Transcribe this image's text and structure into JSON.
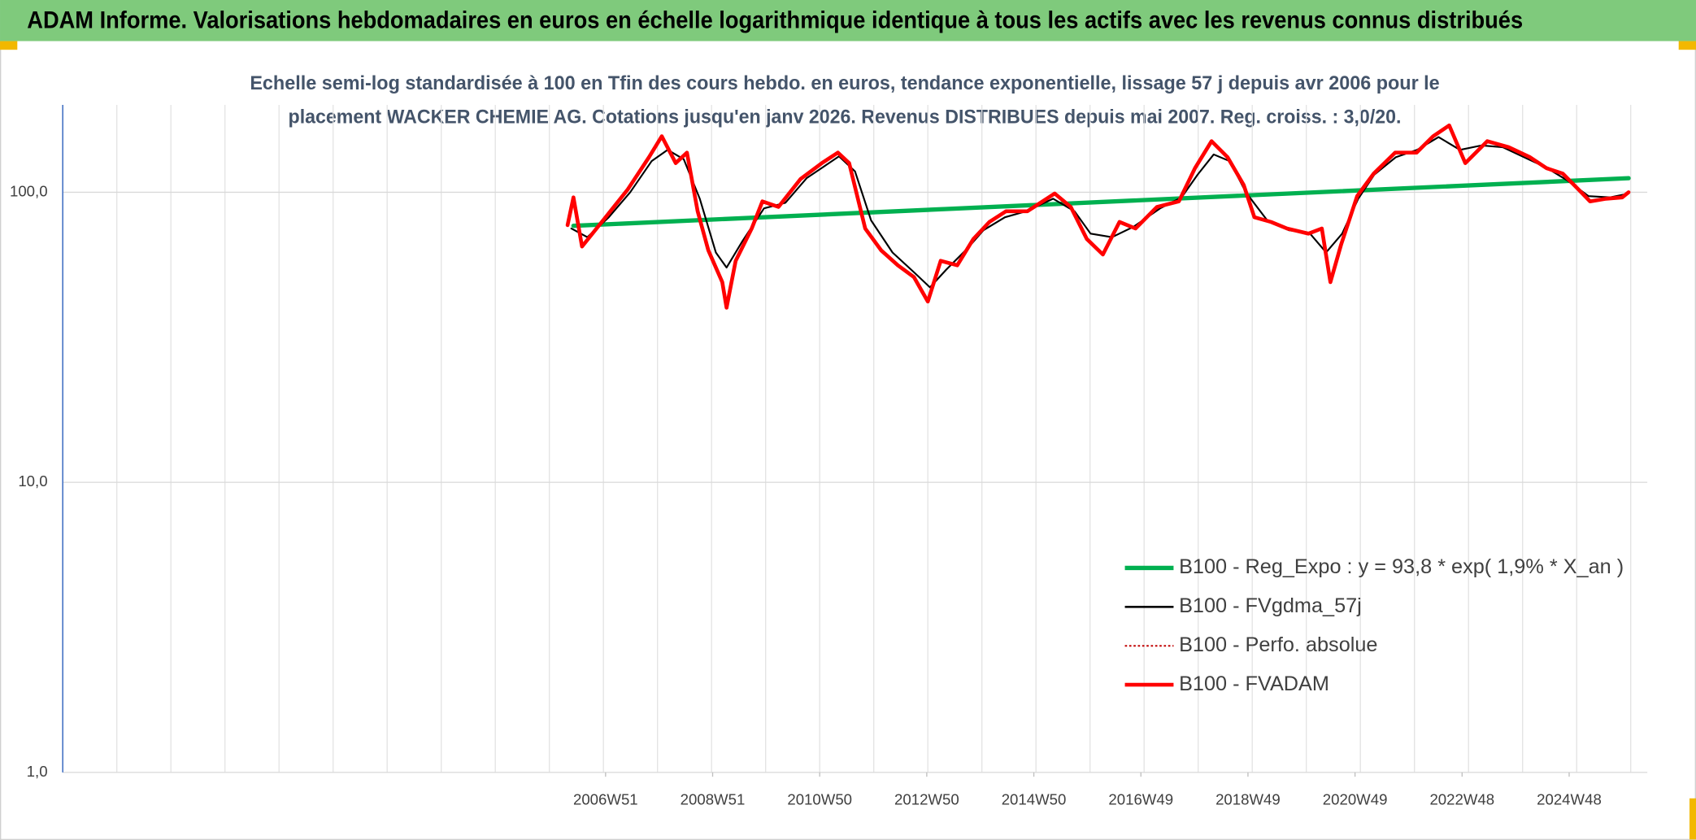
{
  "chart_data": {
    "type": "line",
    "title": "ADAM Informe. Valorisations hebdomadaires en euros en échelle logarithmique identique à tous les actifs avec les revenus connus distribués",
    "subtitle": [
      "Echelle semi-log standardisée à 100 en Tfin des cours hebdo. en euros, tendance exponentielle, lissage 57 j depuis avr 2006 pour le",
      "placement WACKER CHEMIE AG. Cotations jusqu'en janv 2026. Revenus DISTRIBUES depuis mai 2007. Reg. croiss. : 3,0/20."
    ],
    "log_scale": true,
    "grid": true,
    "legend": "right",
    "ylim": [
      1,
      200
    ],
    "yticks": [
      {
        "value": 1,
        "label": "1,0"
      },
      {
        "value": 10,
        "label": "10,0"
      },
      {
        "value": 100,
        "label": "100,0"
      }
    ],
    "xlim": [
      1996.8,
      2026.4
    ],
    "xticks": [
      {
        "value": 2006.94,
        "label": "2006W51"
      },
      {
        "value": 2008.94,
        "label": "2008W51"
      },
      {
        "value": 2010.94,
        "label": "2010W50"
      },
      {
        "value": 2012.94,
        "label": "2012W50"
      },
      {
        "value": 2014.94,
        "label": "2014W50"
      },
      {
        "value": 2016.94,
        "label": "2016W49"
      },
      {
        "value": 2018.94,
        "label": "2018W49"
      },
      {
        "value": 2020.94,
        "label": "2020W49"
      },
      {
        "value": 2022.94,
        "label": "2022W48"
      },
      {
        "value": 2024.94,
        "label": "2024W48"
      }
    ],
    "xgrid": [
      1997.81,
      1998.82,
      1999.83,
      2000.84,
      2001.85,
      2002.86,
      2003.87,
      2004.88,
      2005.89,
      2006.9,
      2007.91,
      2008.92,
      2009.93,
      2010.94,
      2011.95,
      2012.96,
      2013.97,
      2014.98,
      2015.99,
      2017.0,
      2018.01,
      2019.02,
      2020.03,
      2021.04,
      2022.05,
      2023.06,
      2024.07,
      2025.08,
      2026.09
    ],
    "series": [
      {
        "name": "B100 - Reg_Expo : y = 93,8 * exp( 1,9% *  X_an )",
        "color": "#00b050",
        "style": "solid",
        "width": 4,
        "x": [
          2006.34,
          2026.05
        ],
        "values": [
          76.6,
          111.8
        ]
      },
      {
        "name": "B100 - FVgdma_57j",
        "color": "#000000",
        "style": "solid",
        "width": 1.6,
        "x": [
          2006.3,
          2006.6,
          2007.0,
          2007.4,
          2007.8,
          2008.1,
          2008.4,
          2008.7,
          2009.0,
          2009.2,
          2009.5,
          2009.9,
          2010.3,
          2010.7,
          2011.0,
          2011.3,
          2011.6,
          2011.9,
          2012.3,
          2012.7,
          2013.0,
          2013.3,
          2013.7,
          2014.0,
          2014.4,
          2014.8,
          2015.3,
          2015.7,
          2016.0,
          2016.4,
          2016.8,
          2017.3,
          2017.7,
          2018.0,
          2018.3,
          2018.6,
          2018.9,
          2019.3,
          2019.7,
          2020.1,
          2020.4,
          2020.7,
          2021.0,
          2021.3,
          2021.7,
          2022.1,
          2022.5,
          2022.9,
          2023.3,
          2023.7,
          2024.1,
          2024.5,
          2024.9,
          2025.3,
          2025.7,
          2026.05
        ],
        "values": [
          75,
          70,
          82,
          100,
          128,
          140,
          130,
          95,
          62,
          55,
          68,
          88,
          92,
          112,
          122,
          133,
          118,
          80,
          62,
          53,
          47,
          54,
          64,
          74,
          82,
          86,
          95,
          86,
          72,
          70,
          76,
          88,
          96,
          115,
          135,
          128,
          100,
          80,
          74,
          72,
          62,
          72,
          95,
          115,
          132,
          140,
          155,
          140,
          145,
          143,
          132,
          122,
          110,
          97,
          96,
          99
        ]
      },
      {
        "name": "B100 - Perfo. absolue",
        "color": "#c00000",
        "style": "dotted",
        "width": 1.5,
        "x": [
          2006.23,
          2006.34,
          2006.5,
          2006.94,
          2007.35,
          2007.75,
          2007.99,
          2008.25,
          2008.46,
          2008.66,
          2008.86,
          2009.12,
          2009.2,
          2009.37,
          2009.67,
          2009.87,
          2010.17,
          2010.58,
          2010.98,
          2011.28,
          2011.49,
          2011.79,
          2012.09,
          2012.4,
          2012.7,
          2012.96,
          2013.2,
          2013.51,
          2013.81,
          2014.11,
          2014.42,
          2014.82,
          2015.33,
          2015.63,
          2015.93,
          2016.23,
          2016.54,
          2016.84,
          2017.24,
          2017.65,
          2017.95,
          2018.26,
          2018.56,
          2018.86,
          2019.06,
          2019.37,
          2019.67,
          2020.07,
          2020.32,
          2020.48,
          2020.68,
          2020.98,
          2021.29,
          2021.69,
          2022.09,
          2022.4,
          2022.7,
          2023.0,
          2023.41,
          2023.81,
          2024.21,
          2024.52,
          2024.82,
          2025.12,
          2025.33,
          2025.63,
          2025.93,
          2026.05
        ],
        "values": [
          77,
          96,
          65,
          82,
          102,
          132,
          156,
          126,
          137,
          86,
          63,
          49,
          40,
          58,
          75,
          93,
          89,
          111,
          126,
          137,
          126,
          75,
          63,
          56,
          51,
          42,
          58,
          56,
          69,
          79,
          86,
          86,
          99,
          89,
          69,
          61,
          79,
          75,
          89,
          93,
          121,
          150,
          132,
          106,
          82,
          79,
          75,
          72,
          75,
          49,
          66,
          97,
          116,
          137,
          137,
          156,
          170,
          126,
          150,
          143,
          132,
          121,
          116,
          102,
          93,
          95,
          96,
          100
        ]
      },
      {
        "name": "B100 - FVADAM",
        "color": "#ff0000",
        "style": "solid",
        "width": 3.5,
        "x": [
          2006.23,
          2006.34,
          2006.5,
          2006.94,
          2007.35,
          2007.75,
          2007.99,
          2008.25,
          2008.46,
          2008.66,
          2008.86,
          2009.12,
          2009.2,
          2009.37,
          2009.67,
          2009.87,
          2010.17,
          2010.58,
          2010.98,
          2011.28,
          2011.49,
          2011.79,
          2012.09,
          2012.4,
          2012.7,
          2012.96,
          2013.2,
          2013.51,
          2013.81,
          2014.11,
          2014.42,
          2014.82,
          2015.33,
          2015.63,
          2015.93,
          2016.23,
          2016.54,
          2016.84,
          2017.24,
          2017.65,
          2017.95,
          2018.26,
          2018.56,
          2018.86,
          2019.06,
          2019.37,
          2019.67,
          2020.07,
          2020.32,
          2020.48,
          2020.68,
          2020.98,
          2021.29,
          2021.69,
          2022.09,
          2022.4,
          2022.7,
          2023.0,
          2023.41,
          2023.81,
          2024.21,
          2024.52,
          2024.82,
          2025.12,
          2025.33,
          2025.63,
          2025.93,
          2026.05
        ],
        "values": [
          77,
          96,
          65,
          82,
          102,
          132,
          156,
          126,
          137,
          86,
          63,
          49,
          40,
          58,
          75,
          93,
          89,
          111,
          126,
          137,
          126,
          75,
          63,
          56,
          51,
          42,
          58,
          56,
          69,
          79,
          86,
          86,
          99,
          89,
          69,
          61,
          79,
          75,
          89,
          93,
          121,
          150,
          132,
          106,
          82,
          79,
          75,
          72,
          75,
          49,
          66,
          97,
          116,
          137,
          137,
          156,
          170,
          126,
          150,
          143,
          132,
          121,
          116,
          102,
          93,
          95,
          96,
          100
        ]
      }
    ]
  }
}
